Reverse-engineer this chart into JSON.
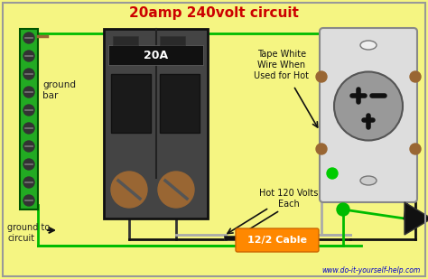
{
  "title": "20amp 240volt circuit",
  "title_color": "#cc0000",
  "bg_color": "#f5f582",
  "border_color": "#999999",
  "website": "www.do-it-yourself-help.com",
  "labels": {
    "ground_bar": "ground\nbar",
    "ground_to_circuit": "ground to\ncircuit",
    "tape_white": "Tape White\nWire When\nUsed for Hot",
    "hot_120": "Hot 120 Volts\nEach",
    "cable": "12/2 Cable"
  },
  "colors": {
    "green_wire": "#00bb00",
    "black_wire": "#111111",
    "white_wire": "#aaaaaa",
    "breaker_body": "#444444",
    "breaker_dark": "#222222",
    "breaker_mid": "#555555",
    "ground_bar_green": "#22aa22",
    "ground_bar_dark": "#005500",
    "screw_brown": "#996633",
    "outlet_body": "#cccccc",
    "outlet_face": "#999999",
    "outlet_bg": "#dddddd",
    "cable_label_bg": "#ff8800",
    "arrow_color": "#111111",
    "website_color": "#0000cc",
    "black_plug": "#111111"
  }
}
